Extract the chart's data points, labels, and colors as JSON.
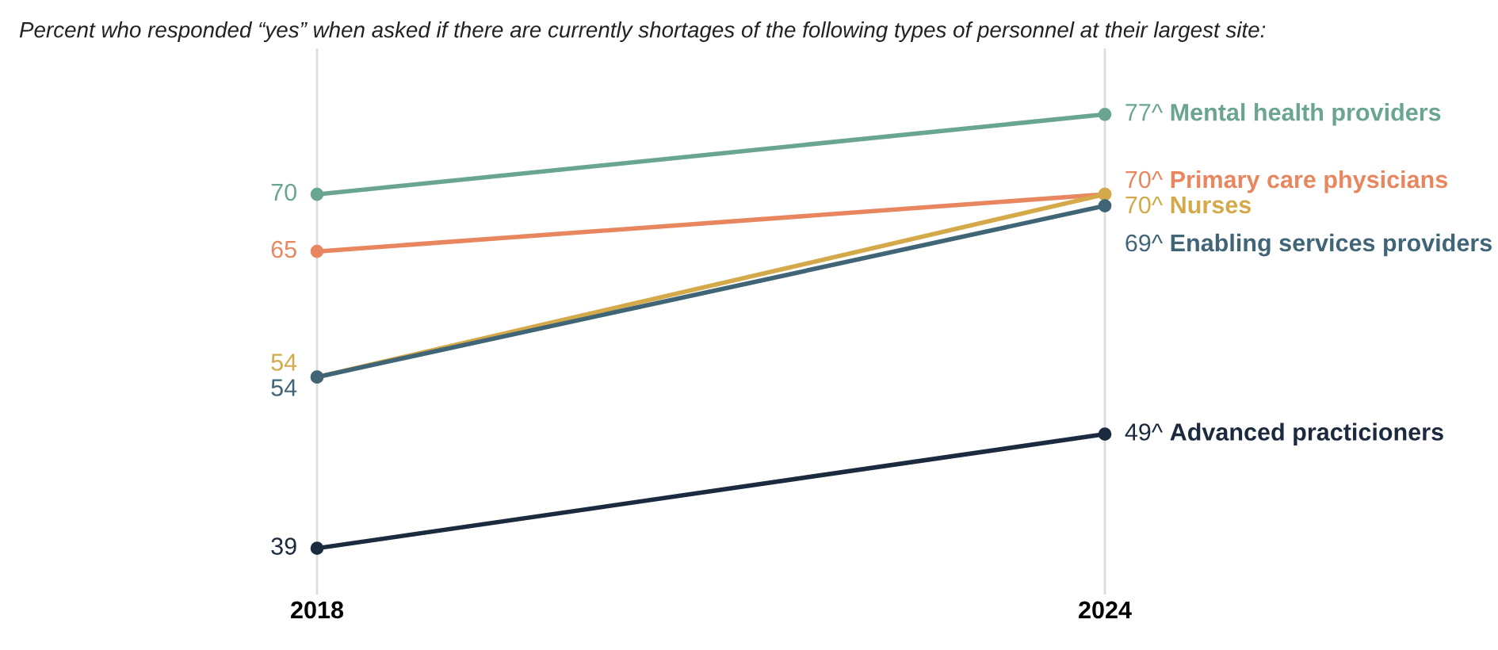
{
  "chart_data": {
    "type": "line",
    "title": "Percent who responded “yes” when asked if there are currently shortages of the following types of personnel at their largest site:",
    "categories": [
      "2018",
      "2024"
    ],
    "series": [
      {
        "name": "Mental health providers",
        "color": "#6aa68f",
        "values": [
          70,
          77
        ],
        "value_labels": [
          "70",
          "77^"
        ]
      },
      {
        "name": "Primary care physicians",
        "color": "#e8875f",
        "values": [
          65,
          70
        ],
        "value_labels": [
          "65",
          "70^"
        ]
      },
      {
        "name": "Nurses",
        "color": "#d4a94a",
        "values": [
          54,
          70
        ],
        "value_labels": [
          "54",
          "70^"
        ]
      },
      {
        "name": "Enabling services providers",
        "color": "#3f6577",
        "values": [
          54,
          69
        ],
        "value_labels": [
          "54",
          "69^"
        ]
      },
      {
        "name": "Advanced practicioners",
        "color": "#1b2a3e",
        "values": [
          39,
          49
        ],
        "value_labels": [
          "39",
          "49^"
        ]
      }
    ],
    "grid": "x",
    "legend": false,
    "marker": "circle",
    "line_style": "solid"
  }
}
